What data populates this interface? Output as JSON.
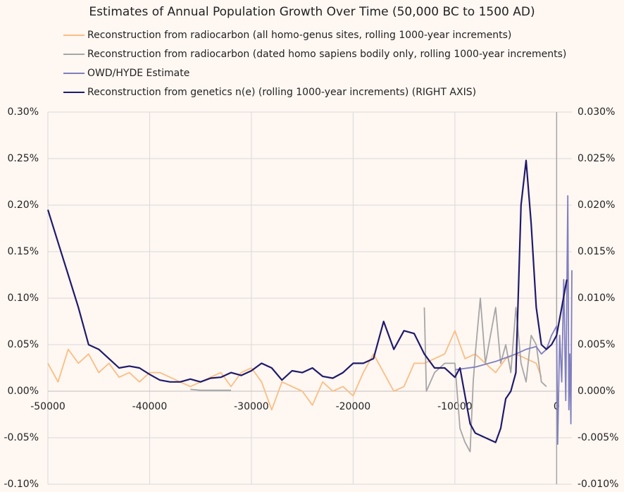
{
  "chart_data": {
    "type": "line",
    "title": "Estimates of Annual Population Growth Over Time (50,000 BC to 1500 AD)",
    "xlim": [
      -50000,
      1500
    ],
    "xticks": [
      -50000,
      -40000,
      -30000,
      -20000,
      -10000,
      0
    ],
    "ylim": [
      -0.1,
      0.3
    ],
    "yticks": [
      {
        "value": -0.1,
        "label": "-0.10%"
      },
      {
        "value": -0.05,
        "label": "-0.05%"
      },
      {
        "value": 0,
        "label": "0.00%"
      },
      {
        "value": 0.05,
        "label": "0.05%"
      },
      {
        "value": 0.1,
        "label": "0.10%"
      },
      {
        "value": 0.15,
        "label": "0.15%"
      },
      {
        "value": 0.2,
        "label": "0.20%"
      },
      {
        "value": 0.25,
        "label": "0.25%"
      },
      {
        "value": 0.3,
        "label": "0.30%"
      }
    ],
    "y2lim": [
      -0.01,
      0.03
    ],
    "y2ticks": [
      {
        "value": -0.01,
        "label": "-0.010%"
      },
      {
        "value": -0.005,
        "label": "-0.005%"
      },
      {
        "value": 0,
        "label": "0.000%"
      },
      {
        "value": 0.005,
        "label": "0.005%"
      },
      {
        "value": 0.01,
        "label": "0.010%"
      },
      {
        "value": 0.015,
        "label": "0.015%"
      },
      {
        "value": 0.02,
        "label": "0.020%"
      },
      {
        "value": 0.025,
        "label": "0.025%"
      },
      {
        "value": 0.03,
        "label": "0.030%"
      }
    ],
    "grid": true,
    "legend": "top",
    "series": [
      {
        "name": "Reconstruction from radiocarbon (all homo-genus sites, rolling 1000-year increments)",
        "color": "#f9be84",
        "x": [
          -50000,
          -49000,
          -48000,
          -47000,
          -46000,
          -45000,
          -44000,
          -43000,
          -42000,
          -41000,
          -40000,
          -39000,
          -38000,
          -37000,
          -36000,
          -35000,
          -34000,
          -33000,
          -32000,
          -31000,
          -30000,
          -29000,
          -28000,
          -27000,
          -26000,
          -25000,
          -24000,
          -23000,
          -22000,
          -21000,
          -20000,
          -19000,
          -18000,
          -17000,
          -16000,
          -15000,
          -14000,
          -13000,
          -12000,
          -11000,
          -10000,
          -9000,
          -8000,
          -7000,
          -6000,
          -5000,
          -4000,
          -3000,
          -2000,
          -1500
        ],
        "values": [
          0.03,
          0.01,
          0.045,
          0.03,
          0.04,
          0.02,
          0.03,
          0.015,
          0.02,
          0.01,
          0.02,
          0.02,
          0.015,
          0.01,
          0.005,
          0.01,
          0.015,
          0.02,
          0.005,
          0.02,
          0.025,
          0.01,
          -0.02,
          0.01,
          0.005,
          0.0,
          -0.015,
          0.01,
          0.0,
          0.005,
          -0.005,
          0.02,
          0.04,
          0.02,
          0.0,
          0.005,
          0.03,
          0.03,
          0.035,
          0.04,
          0.065,
          0.035,
          0.04,
          0.03,
          0.02,
          0.035,
          0.04,
          0.035,
          0.03,
          0.015
        ]
      },
      {
        "name": "Reconstruction from radiocarbon (dated homo sapiens bodily only, rolling 1000-year increments)",
        "color": "#a6a6a6",
        "x": [
          -36000,
          -35000,
          -34000,
          -33000,
          -32000,
          -31000,
          -13000,
          -12800,
          -12000,
          -11000,
          -10000,
          -9500,
          -9000,
          -8500,
          -8200,
          -8000,
          -7500,
          -7000,
          -6500,
          -6000,
          -5500,
          -5000,
          -4500,
          -4000,
          -3500,
          -3000,
          -2500,
          -2000,
          -1500,
          -1000
        ],
        "values": [
          0.002,
          0.001,
          0.001,
          0.001,
          0.001,
          null,
          0.09,
          0.0,
          0.02,
          0.03,
          0.03,
          -0.04,
          -0.055,
          -0.065,
          0.01,
          0.04,
          0.1,
          0.03,
          0.06,
          0.09,
          0.03,
          0.05,
          0.02,
          0.09,
          0.03,
          0.01,
          0.06,
          0.05,
          0.01,
          0.005
        ]
      },
      {
        "name": "OWD/HYDE Estimate",
        "color": "#7f7fbf",
        "x": [
          -10000,
          -8000,
          -6000,
          -4000,
          -3000,
          -2000,
          -1500,
          -1000,
          -500,
          0,
          100,
          300,
          500,
          700,
          900,
          1100,
          1200,
          1300,
          1400,
          1500
        ],
        "values": [
          0.023,
          0.026,
          0.032,
          0.04,
          0.045,
          0.048,
          0.04,
          0.045,
          0.06,
          0.07,
          -0.057,
          0.06,
          0.01,
          0.12,
          -0.01,
          0.21,
          -0.02,
          0.04,
          -0.035,
          0.13
        ]
      },
      {
        "name": "Reconstruction from genetics n(e) (rolling 1000-year increments) (RIGHT AXIS)",
        "color": "#1f1a6b",
        "axis": "y2",
        "x": [
          -50000,
          -49000,
          -48000,
          -47000,
          -46000,
          -45000,
          -44000,
          -43000,
          -42000,
          -41000,
          -40000,
          -39000,
          -38000,
          -37000,
          -36000,
          -35000,
          -34000,
          -33000,
          -32000,
          -31000,
          -30000,
          -29000,
          -28000,
          -27000,
          -26000,
          -25000,
          -24000,
          -23000,
          -22000,
          -21000,
          -20000,
          -19000,
          -18000,
          -17000,
          -16000,
          -15000,
          -14000,
          -13000,
          -12000,
          -11000,
          -10000,
          -9500,
          -9000,
          -8500,
          -8000,
          -7000,
          -6000,
          -5500,
          -5000,
          -4500,
          -4000,
          -3500,
          -3000,
          -2500,
          -2000,
          -1500,
          -1000,
          -500,
          0,
          500,
          1000
        ],
        "values": [
          0.0195,
          0.016,
          0.0125,
          0.009,
          0.005,
          0.0045,
          0.0035,
          0.0025,
          0.0027,
          0.0025,
          0.0018,
          0.0012,
          0.001,
          0.001,
          0.0013,
          0.001,
          0.0014,
          0.0015,
          0.002,
          0.0017,
          0.0022,
          0.003,
          0.0025,
          0.0012,
          0.0022,
          0.002,
          0.0025,
          0.0016,
          0.0014,
          0.002,
          0.003,
          0.003,
          0.0035,
          0.0075,
          0.0045,
          0.0065,
          0.0062,
          0.004,
          0.0025,
          0.0025,
          0.0015,
          0.0025,
          -0.0005,
          -0.0035,
          -0.0045,
          -0.005,
          -0.0055,
          -0.004,
          -0.0008,
          0.0,
          0.002,
          0.02,
          0.0248,
          0.018,
          0.009,
          0.005,
          0.0045,
          0.005,
          0.006,
          0.009,
          0.012
        ]
      }
    ]
  }
}
